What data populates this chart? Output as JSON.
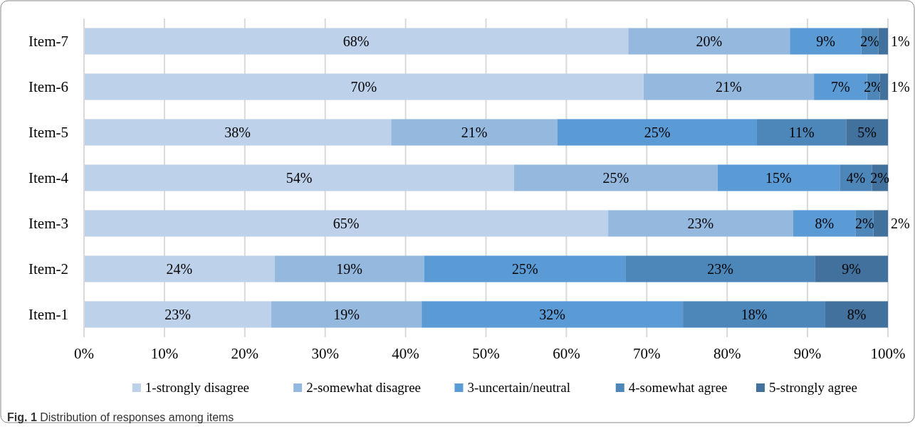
{
  "chart_data": {
    "type": "bar",
    "orientation": "horizontal",
    "stacked": true,
    "categories": [
      "Item-7",
      "Item-6",
      "Item-5",
      "Item-4",
      "Item-3",
      "Item-2",
      "Item-1"
    ],
    "series": [
      {
        "name": "1-strongly disagree",
        "color": "#bdd1ea",
        "values": [
          67.7,
          69.6,
          38.2,
          53.5,
          65.2,
          23.7,
          23.3
        ],
        "value_labels": [
          "68%",
          "70%",
          "38%",
          "54%",
          "65%",
          "24%",
          "23%"
        ]
      },
      {
        "name": "2-somewhat disagree",
        "color": "#95b8df",
        "values": [
          20.1,
          21.2,
          20.7,
          25.3,
          23.0,
          18.6,
          18.7
        ],
        "value_labels": [
          "20%",
          "21%",
          "21%",
          "25%",
          "23%",
          "19%",
          "19%"
        ]
      },
      {
        "name": "3-uncertain/neutral",
        "color": "#5a9ad5",
        "values": [
          8.9,
          6.6,
          24.8,
          15.2,
          7.8,
          25.1,
          32.5
        ],
        "value_labels": [
          "9%",
          "7%",
          "25%",
          "15%",
          "8%",
          "25%",
          "32%"
        ]
      },
      {
        "name": "4-somewhat agree",
        "color": "#4d87ba",
        "values": [
          2.1,
          1.6,
          11.1,
          4.0,
          2.2,
          23.5,
          17.7
        ],
        "value_labels": [
          "2%",
          "2%",
          "11%",
          "4%",
          "2%",
          "23%",
          "18%"
        ]
      },
      {
        "name": "5-strongly agree",
        "color": "#41719c",
        "values": [
          1.2,
          1.0,
          5.2,
          2.0,
          1.8,
          9.1,
          7.8
        ],
        "value_labels": [
          "1%",
          "1%",
          "5%",
          "2%",
          "2%",
          "9%",
          "8%"
        ]
      }
    ],
    "xlim": [
      0,
      100
    ],
    "xticks": [
      {
        "value": 0,
        "label": "0%"
      },
      {
        "value": 10,
        "label": "10%"
      },
      {
        "value": 20,
        "label": "20%"
      },
      {
        "value": 30,
        "label": "30%"
      },
      {
        "value": 40,
        "label": "40%"
      },
      {
        "value": 50,
        "label": "50%"
      },
      {
        "value": 60,
        "label": "60%"
      },
      {
        "value": 70,
        "label": "70%"
      },
      {
        "value": 80,
        "label": "80%"
      },
      {
        "value": 90,
        "label": "90%"
      },
      {
        "value": 100,
        "label": "100%"
      }
    ],
    "grid": "x",
    "legend": "bottom",
    "annotations": [
      "Fig. 1  Distribution of responses among items"
    ]
  }
}
